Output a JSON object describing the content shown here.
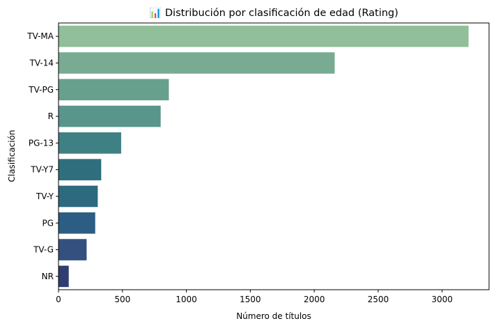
{
  "chart_data": {
    "type": "bar",
    "orientation": "horizontal",
    "title": "📊 Distribución por clasificación de edad (Rating)",
    "xlabel": "Número de títulos",
    "ylabel": "Clasificación",
    "categories": [
      "TV-MA",
      "TV-14",
      "TV-PG",
      "R",
      "PG-13",
      "TV-Y7",
      "TV-Y",
      "PG",
      "TV-G",
      "NR"
    ],
    "values": [
      3207,
      2160,
      863,
      799,
      490,
      334,
      307,
      287,
      220,
      80
    ],
    "colors": [
      "#90bf99",
      "#79ab92",
      "#68a08e",
      "#5a958b",
      "#3f8084",
      "#2f6f7d",
      "#2d6a80",
      "#2b5e82",
      "#34507f",
      "#2f3d70"
    ],
    "xlim": [
      0,
      3367
    ],
    "xticks": [
      0,
      500,
      1000,
      1500,
      2000,
      2500,
      3000
    ],
    "grid": false,
    "legend": "none"
  }
}
